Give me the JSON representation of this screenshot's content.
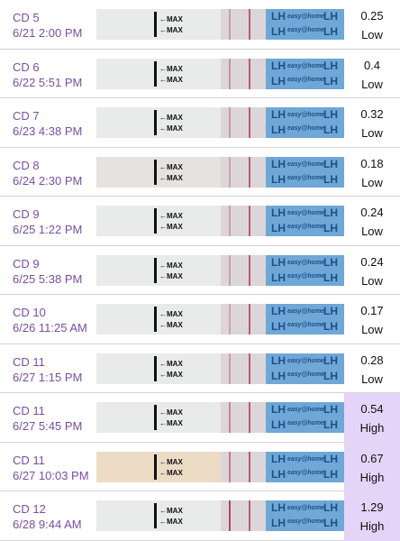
{
  "strip": {
    "max_label": "MAX",
    "lh_label": "LH",
    "brand": "easy@home"
  },
  "rows": [
    {
      "cycle_day": "CD 5",
      "time": "6/21 2:00 PM",
      "value": 0.25,
      "result": "Low",
      "highlighted": false
    },
    {
      "cycle_day": "CD 6",
      "time": "6/22 5:51 PM",
      "value": 0.4,
      "result": "Low",
      "highlighted": false
    },
    {
      "cycle_day": "CD 7",
      "time": "6/23 4:38 PM",
      "value": 0.32,
      "result": "Low",
      "highlighted": false
    },
    {
      "cycle_day": "CD 8",
      "time": "6/24 2:30 PM",
      "value": 0.18,
      "result": "Low",
      "highlighted": false
    },
    {
      "cycle_day": "CD 9",
      "time": "6/25 1:22 PM",
      "value": 0.24,
      "result": "Low",
      "highlighted": false
    },
    {
      "cycle_day": "CD 9",
      "time": "6/25 5:38 PM",
      "value": 0.24,
      "result": "Low",
      "highlighted": false
    },
    {
      "cycle_day": "CD 10",
      "time": "6/26 11:25 AM",
      "value": 0.17,
      "result": "Low",
      "highlighted": false
    },
    {
      "cycle_day": "CD 11",
      "time": "6/27 1:15 PM",
      "value": 0.28,
      "result": "Low",
      "highlighted": false
    },
    {
      "cycle_day": "CD 11",
      "time": "6/27 5:45 PM",
      "value": 0.54,
      "result": "High",
      "highlighted": true
    },
    {
      "cycle_day": "CD 11",
      "time": "6/27 10:03 PM",
      "value": 0.67,
      "result": "High",
      "highlighted": true
    },
    {
      "cycle_day": "CD 12",
      "time": "6/28 9:44 AM",
      "value": 1.29,
      "result": "High",
      "highlighted": true
    }
  ]
}
